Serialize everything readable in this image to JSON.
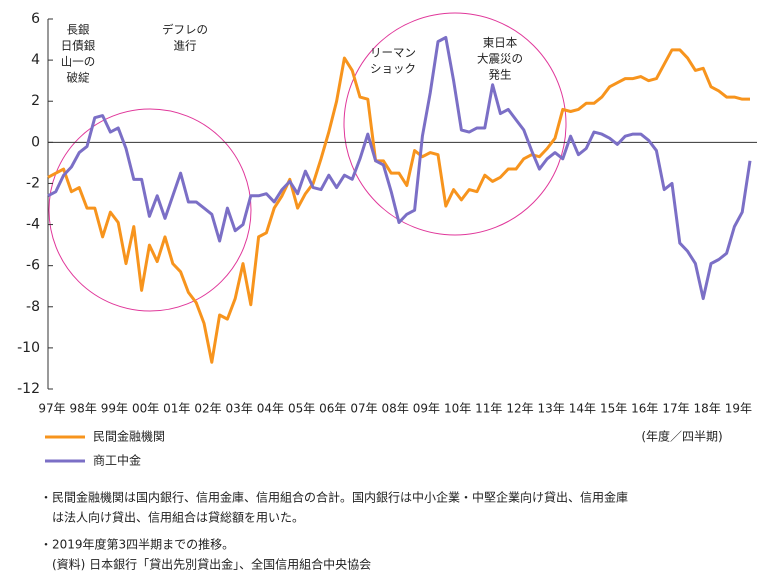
{
  "chart_data": {
    "type": "line",
    "categories": [
      "97年",
      null,
      null,
      null,
      "98年",
      null,
      null,
      null,
      "99年",
      null,
      null,
      null,
      "00年",
      null,
      null,
      null,
      "01年",
      null,
      null,
      null,
      "02年",
      null,
      null,
      null,
      "03年",
      null,
      null,
      null,
      "04年",
      null,
      null,
      null,
      "05年",
      null,
      null,
      null,
      "06年",
      null,
      null,
      null,
      "07年",
      null,
      null,
      null,
      "08年",
      null,
      null,
      null,
      "09年",
      null,
      null,
      null,
      "10年",
      null,
      null,
      null,
      "11年",
      null,
      null,
      null,
      "12年",
      null,
      null,
      null,
      "13年",
      null,
      null,
      null,
      "14年",
      null,
      null,
      null,
      "15年",
      null,
      null,
      null,
      "16年",
      null,
      null,
      null,
      "17年",
      null,
      null,
      null,
      "18年",
      null,
      null,
      null,
      "19年",
      null,
      null
    ],
    "series": [
      {
        "name": "民間金融機関",
        "color": "#f7941d",
        "values": [
          -1.7,
          -1.5,
          -1.3,
          -2.4,
          -2.2,
          -3.2,
          -3.2,
          -4.6,
          -3.4,
          -3.9,
          -5.9,
          -4.1,
          -7.2,
          -5.0,
          -5.8,
          -4.6,
          -5.9,
          -6.3,
          -7.3,
          -7.8,
          -8.8,
          -10.7,
          -8.4,
          -8.6,
          -7.6,
          -5.9,
          -7.9,
          -4.6,
          -4.4,
          -3.2,
          -2.6,
          -1.8,
          -3.2,
          -2.5,
          -2.0,
          -0.8,
          0.5,
          2.0,
          4.1,
          3.5,
          2.2,
          2.1,
          -0.9,
          -0.9,
          -1.5,
          -1.5,
          -2.1,
          -0.4,
          -0.7,
          -0.5,
          -0.6,
          -3.1,
          -2.3,
          -2.8,
          -2.3,
          -2.4,
          -1.6,
          -1.9,
          -1.7,
          -1.3,
          -1.3,
          -0.8,
          -0.6,
          -0.7,
          -0.3,
          0.2,
          1.6,
          1.5,
          1.6,
          1.9,
          1.9,
          2.2,
          2.7,
          2.9,
          3.1,
          3.1,
          3.2,
          3.0,
          3.1,
          3.8,
          4.5,
          4.5,
          4.1,
          3.5,
          3.6,
          2.7,
          2.5,
          2.2,
          2.2,
          2.1,
          2.1
        ]
      },
      {
        "name": "商工中金",
        "color": "#7b6fc6",
        "values": [
          -2.6,
          -2.4,
          -1.6,
          -1.2,
          -0.5,
          -0.2,
          1.2,
          1.3,
          0.5,
          0.7,
          -0.3,
          -1.8,
          -1.8,
          -3.6,
          -2.6,
          -3.7,
          -2.6,
          -1.5,
          -2.9,
          -2.9,
          -3.2,
          -3.5,
          -4.8,
          -3.2,
          -4.3,
          -4.0,
          -2.6,
          -2.6,
          -2.5,
          -2.9,
          -2.3,
          -1.9,
          -2.5,
          -1.4,
          -2.2,
          -2.3,
          -1.6,
          -2.2,
          -1.6,
          -1.8,
          -0.8,
          0.4,
          -0.9,
          -1.1,
          -2.4,
          -3.9,
          -3.5,
          -3.3,
          0.3,
          2.4,
          4.9,
          5.1,
          3.0,
          0.6,
          0.5,
          0.7,
          0.7,
          2.8,
          1.4,
          1.6,
          1.1,
          0.6,
          -0.4,
          -1.3,
          -0.8,
          -0.5,
          -0.8,
          0.3,
          -0.6,
          -0.3,
          0.5,
          0.4,
          0.2,
          -0.1,
          0.3,
          0.4,
          0.4,
          0.1,
          -0.4,
          -2.3,
          -2.0,
          -4.9,
          -5.3,
          -5.9,
          -7.6,
          -5.9,
          -5.7,
          -5.4,
          -4.1,
          -3.4,
          -0.9
        ]
      }
    ],
    "ylim": [
      -12,
      6
    ],
    "yticks": [
      -12,
      -10,
      -8,
      -6,
      -4,
      -2,
      0,
      2,
      4,
      6
    ],
    "x_label": "(年度／四半期)",
    "annotations": [
      [
        "長銀",
        "日債銀",
        "山一の",
        "破綻"
      ],
      [
        "デフレの",
        "進行"
      ],
      [
        "リーマン",
        "ショック"
      ],
      [
        "東日本",
        "大震災の",
        "発生"
      ]
    ],
    "notes": [
      "・民間金融機関は国内銀行、信用金庫、信用組合の合計。国内銀行は中小企業・中堅企業向け貸出、信用金庫",
      "　は法人向け貸出、信用組合は貸総額を用いた。",
      "・2019年度第3四半期までの推移。",
      "　(資料) 日本銀行「貸出先別貸出金」、全国信用組合中央協会"
    ]
  }
}
